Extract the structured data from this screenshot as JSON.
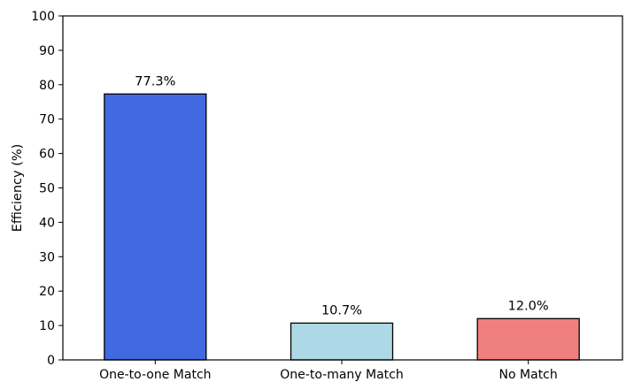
{
  "chart_data": {
    "type": "bar",
    "title": "",
    "xlabel": "",
    "ylabel": "Efficiency (%)",
    "ylim": [
      0,
      100
    ],
    "yticks": [
      0,
      10,
      20,
      30,
      40,
      50,
      60,
      70,
      80,
      90,
      100
    ],
    "categories": [
      "One-to-one Match",
      "One-to-many Match",
      "No Match"
    ],
    "values": [
      77.3,
      10.7,
      12.0
    ],
    "value_labels": [
      "77.3%",
      "10.7%",
      "12.0%"
    ],
    "bar_colors": [
      "#4169e1",
      "#add8e6",
      "#f08080"
    ],
    "edge_color": "#000000",
    "grid": false,
    "legend": "none"
  }
}
